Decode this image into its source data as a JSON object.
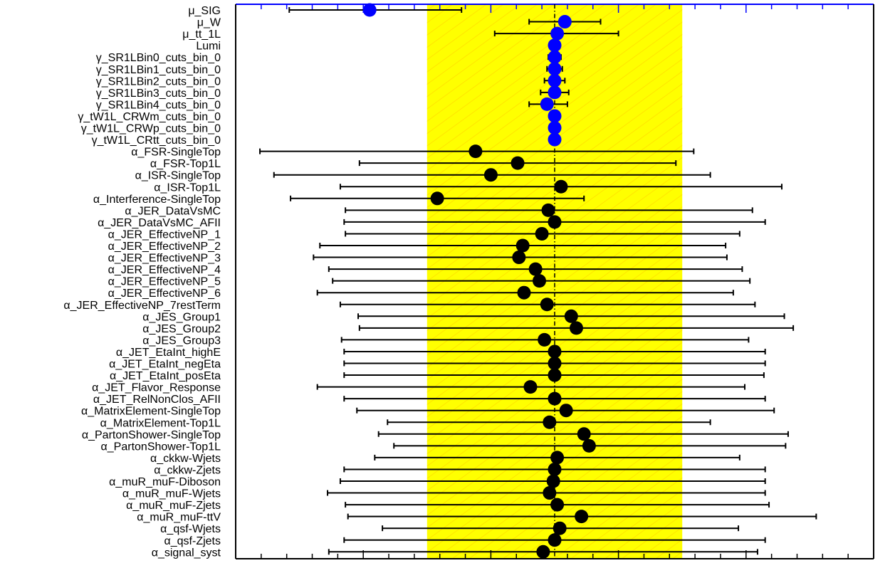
{
  "chart_data": {
    "type": "scatter",
    "description_kind": "pull plot",
    "xlim": [
      -2.5,
      2.5
    ],
    "band": {
      "from": -1.0,
      "to": 1.0,
      "color": "#ffff00",
      "hatch_color": "#ffd700"
    },
    "reference_line": 0.0,
    "colors": {
      "poi": "#0000ff",
      "np": "#000000",
      "frame_top": "#0000ff"
    },
    "parameters": [
      {
        "name": "μ_SIG",
        "value": -1.45,
        "lo": -2.08,
        "hi": -0.73,
        "kind": "poi"
      },
      {
        "name": "μ_W",
        "value": 0.08,
        "lo": -0.2,
        "hi": 0.36,
        "kind": "poi"
      },
      {
        "name": "μ_tt_1L",
        "value": 0.02,
        "lo": -0.47,
        "hi": 0.5,
        "kind": "poi"
      },
      {
        "name": "Lumi",
        "value": 0.0,
        "lo": -0.03,
        "hi": 0.03,
        "kind": "poi"
      },
      {
        "name": "γ_SR1LBin0_cuts_bin_0",
        "value": 0.0,
        "lo": -0.05,
        "hi": 0.05,
        "kind": "poi"
      },
      {
        "name": "γ_SR1LBin1_cuts_bin_0",
        "value": 0.0,
        "lo": -0.06,
        "hi": 0.06,
        "kind": "poi"
      },
      {
        "name": "γ_SR1LBin2_cuts_bin_0",
        "value": 0.0,
        "lo": -0.08,
        "hi": 0.08,
        "kind": "poi"
      },
      {
        "name": "γ_SR1LBin3_cuts_bin_0",
        "value": 0.0,
        "lo": -0.11,
        "hi": 0.11,
        "kind": "poi"
      },
      {
        "name": "γ_SR1LBin4_cuts_bin_0",
        "value": -0.06,
        "lo": -0.2,
        "hi": 0.1,
        "kind": "poi"
      },
      {
        "name": "γ_tW1L_CRWm_cuts_bin_0",
        "value": 0.0,
        "lo": -0.04,
        "hi": 0.04,
        "kind": "poi"
      },
      {
        "name": "γ_tW1L_CRWp_cuts_bin_0",
        "value": 0.0,
        "lo": -0.04,
        "hi": 0.04,
        "kind": "poi"
      },
      {
        "name": "γ_tW1L_CRtt_cuts_bin_0",
        "value": 0.0,
        "lo": -0.04,
        "hi": 0.04,
        "kind": "poi"
      },
      {
        "name": "α_FSR-SingleTop",
        "value": -0.62,
        "lo": -2.31,
        "hi": 1.09,
        "kind": "np"
      },
      {
        "name": "α_FSR-Top1L",
        "value": -0.29,
        "lo": -1.53,
        "hi": 0.95,
        "kind": "np"
      },
      {
        "name": "α_ISR-SingleTop",
        "value": -0.5,
        "lo": -2.2,
        "hi": 1.22,
        "kind": "np"
      },
      {
        "name": "α_ISR-Top1L",
        "value": 0.05,
        "lo": -1.68,
        "hi": 1.78,
        "kind": "np"
      },
      {
        "name": "α_Interference-SingleTop",
        "value": -0.92,
        "lo": -2.07,
        "hi": 0.23,
        "kind": "np"
      },
      {
        "name": "α_JER_DataVsMC",
        "value": -0.05,
        "lo": -1.64,
        "hi": 1.55,
        "kind": "np"
      },
      {
        "name": "α_JER_DataVsMC_AFII",
        "value": 0.0,
        "lo": -1.65,
        "hi": 1.65,
        "kind": "np"
      },
      {
        "name": "α_JER_EffectiveNP_1",
        "value": -0.1,
        "lo": -1.64,
        "hi": 1.45,
        "kind": "np"
      },
      {
        "name": "α_JER_EffectiveNP_2",
        "value": -0.25,
        "lo": -1.84,
        "hi": 1.34,
        "kind": "np"
      },
      {
        "name": "α_JER_EffectiveNP_3",
        "value": -0.28,
        "lo": -1.89,
        "hi": 1.35,
        "kind": "np"
      },
      {
        "name": "α_JER_EffectiveNP_4",
        "value": -0.15,
        "lo": -1.77,
        "hi": 1.47,
        "kind": "np"
      },
      {
        "name": "α_JER_EffectiveNP_5",
        "value": -0.12,
        "lo": -1.74,
        "hi": 1.53,
        "kind": "np"
      },
      {
        "name": "α_JER_EffectiveNP_6",
        "value": -0.24,
        "lo": -1.86,
        "hi": 1.4,
        "kind": "np"
      },
      {
        "name": "α_JER_EffectiveNP_7restTerm",
        "value": -0.06,
        "lo": -1.68,
        "hi": 1.57,
        "kind": "np"
      },
      {
        "name": "α_JES_Group1",
        "value": 0.13,
        "lo": -1.54,
        "hi": 1.8,
        "kind": "np"
      },
      {
        "name": "α_JES_Group2",
        "value": 0.17,
        "lo": -1.53,
        "hi": 1.87,
        "kind": "np"
      },
      {
        "name": "α_JES_Group3",
        "value": -0.08,
        "lo": -1.67,
        "hi": 1.52,
        "kind": "np"
      },
      {
        "name": "α_JET_EtaInt_highE",
        "value": 0.0,
        "lo": -1.65,
        "hi": 1.65,
        "kind": "np"
      },
      {
        "name": "α_JET_EtaInt_negEta",
        "value": 0.0,
        "lo": -1.65,
        "hi": 1.65,
        "kind": "np"
      },
      {
        "name": "α_JET_EtaInt_posEta",
        "value": 0.0,
        "lo": -1.65,
        "hi": 1.64,
        "kind": "np"
      },
      {
        "name": "α_JET_Flavor_Response",
        "value": -0.19,
        "lo": -1.86,
        "hi": 1.49,
        "kind": "np"
      },
      {
        "name": "α_JET_RelNonClos_AFII",
        "value": 0.0,
        "lo": -1.65,
        "hi": 1.65,
        "kind": "np"
      },
      {
        "name": "α_MatrixElement-SingleTop",
        "value": 0.09,
        "lo": -1.55,
        "hi": 1.72,
        "kind": "np"
      },
      {
        "name": "α_MatrixElement-Top1L",
        "value": -0.04,
        "lo": -1.31,
        "hi": 1.22,
        "kind": "np"
      },
      {
        "name": "α_PartonShower-SingleTop",
        "value": 0.23,
        "lo": -1.38,
        "hi": 1.83,
        "kind": "np"
      },
      {
        "name": "α_PartonShower-Top1L",
        "value": 0.27,
        "lo": -1.26,
        "hi": 1.81,
        "kind": "np"
      },
      {
        "name": "α_ckkw-Wjets",
        "value": 0.02,
        "lo": -1.41,
        "hi": 1.45,
        "kind": "np"
      },
      {
        "name": "α_ckkw-Zjets",
        "value": 0.0,
        "lo": -1.65,
        "hi": 1.65,
        "kind": "np"
      },
      {
        "name": "α_muR_muF-Diboson",
        "value": -0.01,
        "lo": -1.68,
        "hi": 1.65,
        "kind": "np"
      },
      {
        "name": "α_muR_muF-Wjets",
        "value": -0.04,
        "lo": -1.78,
        "hi": 1.65,
        "kind": "np"
      },
      {
        "name": "α_muR_muF-Zjets",
        "value": 0.02,
        "lo": -1.64,
        "hi": 1.68,
        "kind": "np"
      },
      {
        "name": "α_muR_muF-ttV",
        "value": 0.21,
        "lo": -1.62,
        "hi": 2.05,
        "kind": "np"
      },
      {
        "name": "α_qsf-Wjets",
        "value": 0.04,
        "lo": -1.35,
        "hi": 1.44,
        "kind": "np"
      },
      {
        "name": "α_qsf-Zjets",
        "value": 0.0,
        "lo": -1.65,
        "hi": 1.65,
        "kind": "np"
      },
      {
        "name": "α_signal_syst",
        "value": -0.09,
        "lo": -1.77,
        "hi": 1.59,
        "kind": "np"
      }
    ]
  }
}
